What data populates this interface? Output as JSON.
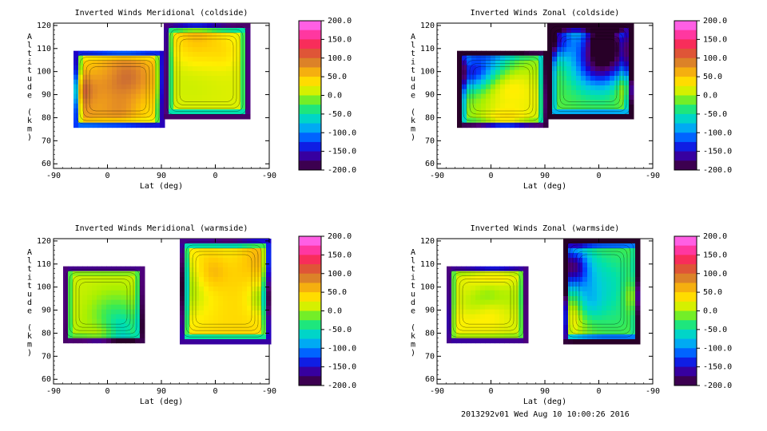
{
  "footer": "2013292v01 Wed Aug 10 10:00:26 2016",
  "colorbar_ticks": [
    "200.0",
    "150.0",
    "100.0",
    "50.0",
    "0.0",
    "-50.0",
    "-100.0",
    "-150.0",
    "-200.0"
  ],
  "chart_data": [
    {
      "type": "heatmap",
      "title": "Inverted Winds Meridional (coldside)",
      "xlabel": "Lat (deg)",
      "ylabel": "Altitude (km)",
      "xticks": [
        "-90",
        "0",
        "90",
        "0",
        "-90"
      ],
      "yticks": [
        "120",
        "110",
        "100",
        "90",
        "80",
        "70",
        "60"
      ],
      "ylim": [
        58,
        121
      ],
      "colorbar": {
        "min": -200,
        "max": 200,
        "unit_label": ""
      },
      "regions": [
        {
          "name": "left",
          "lat_range": "-75 to 35",
          "alt_range": [
            76,
            109
          ],
          "mean_value": 40,
          "peak_value": 110
        },
        {
          "name": "right",
          "lat_range": "90 to -45",
          "alt_range": [
            80,
            121
          ],
          "mean_value": 15,
          "peak_value": 40
        }
      ]
    },
    {
      "type": "heatmap",
      "title": "Inverted Winds Zonal (coldside)",
      "xlabel": "Lat (deg)",
      "ylabel": "Altitude (km)",
      "xticks": [
        "-90",
        "0",
        "90",
        "0",
        "-90"
      ],
      "yticks": [
        "120",
        "110",
        "100",
        "90",
        "80",
        "70",
        "60"
      ],
      "ylim": [
        58,
        121
      ],
      "colorbar": {
        "min": -200,
        "max": 200,
        "unit_label": ""
      },
      "regions": [
        {
          "name": "left",
          "lat_range": "-75 to 90",
          "alt_range": [
            76,
            109
          ],
          "mean_value": -10,
          "peak_value": 120
        },
        {
          "name": "right",
          "lat_range": "90 to -45",
          "alt_range": [
            80,
            121
          ],
          "mean_value": -20,
          "peak_value": 160
        }
      ]
    },
    {
      "type": "heatmap",
      "title": "Inverted Winds Meridional (warmside)",
      "xlabel": "Lat (deg)",
      "ylabel": "Altitude (km)",
      "xticks": [
        "-90",
        "0",
        "90",
        "0",
        "-90"
      ],
      "yticks": [
        "120",
        "110",
        "100",
        "90",
        "80",
        "70",
        "60"
      ],
      "ylim": [
        58,
        121
      ],
      "colorbar": {
        "min": -200,
        "max": 200,
        "unit_label": ""
      },
      "regions": [
        {
          "name": "left",
          "lat_range": "-80 to 35",
          "alt_range": [
            77,
            109
          ],
          "mean_value": 10,
          "peak_value": 60
        },
        {
          "name": "right",
          "lat_range": "110 to -45",
          "alt_range": [
            77,
            121
          ],
          "mean_value": 40,
          "peak_value": 110
        }
      ]
    },
    {
      "type": "heatmap",
      "title": "Inverted Winds Zonal (warmside)",
      "xlabel": "Lat (deg)",
      "ylabel": "Altitude (km)",
      "xticks": [
        "-90",
        "0",
        "90",
        "0",
        "-90"
      ],
      "yticks": [
        "120",
        "110",
        "100",
        "90",
        "80",
        "70",
        "60"
      ],
      "ylim": [
        58,
        121
      ],
      "colorbar": {
        "min": -200,
        "max": 200,
        "unit_label": ""
      },
      "regions": [
        {
          "name": "left",
          "lat_range": "-75 to 35",
          "alt_range": [
            77,
            109
          ],
          "mean_value": 10,
          "peak_value": 60
        },
        {
          "name": "right",
          "lat_range": "110 to -45",
          "alt_range": [
            77,
            121
          ],
          "mean_value": -20,
          "peak_value": 80
        }
      ]
    }
  ]
}
